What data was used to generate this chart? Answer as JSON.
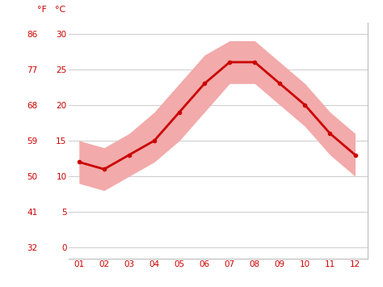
{
  "months": [
    1,
    2,
    3,
    4,
    5,
    6,
    7,
    8,
    9,
    10,
    11,
    12
  ],
  "month_labels": [
    "01",
    "02",
    "03",
    "04",
    "05",
    "06",
    "07",
    "08",
    "09",
    "10",
    "11",
    "12"
  ],
  "mean_temps_c": [
    12,
    11,
    13,
    15,
    19,
    23,
    26,
    26,
    23,
    20,
    16,
    13
  ],
  "max_temps_c": [
    15,
    14,
    16,
    19,
    23,
    27,
    29,
    29,
    26,
    23,
    19,
    16
  ],
  "min_temps_c": [
    9,
    8,
    10,
    12,
    15,
    19,
    23,
    23,
    20,
    17,
    13,
    10
  ],
  "yticks_c": [
    0,
    5,
    10,
    15,
    20,
    25,
    30
  ],
  "yticks_f": [
    32,
    41,
    50,
    59,
    68,
    77,
    86
  ],
  "ylim_c": [
    -1.5,
    31.5
  ],
  "line_color": "#cc0000",
  "band_color": "#f2aaaa",
  "axis_color": "#cc0000",
  "grid_color": "#cccccc",
  "bg_color": "#ffffff",
  "label_f": "°F",
  "label_c": "°C"
}
